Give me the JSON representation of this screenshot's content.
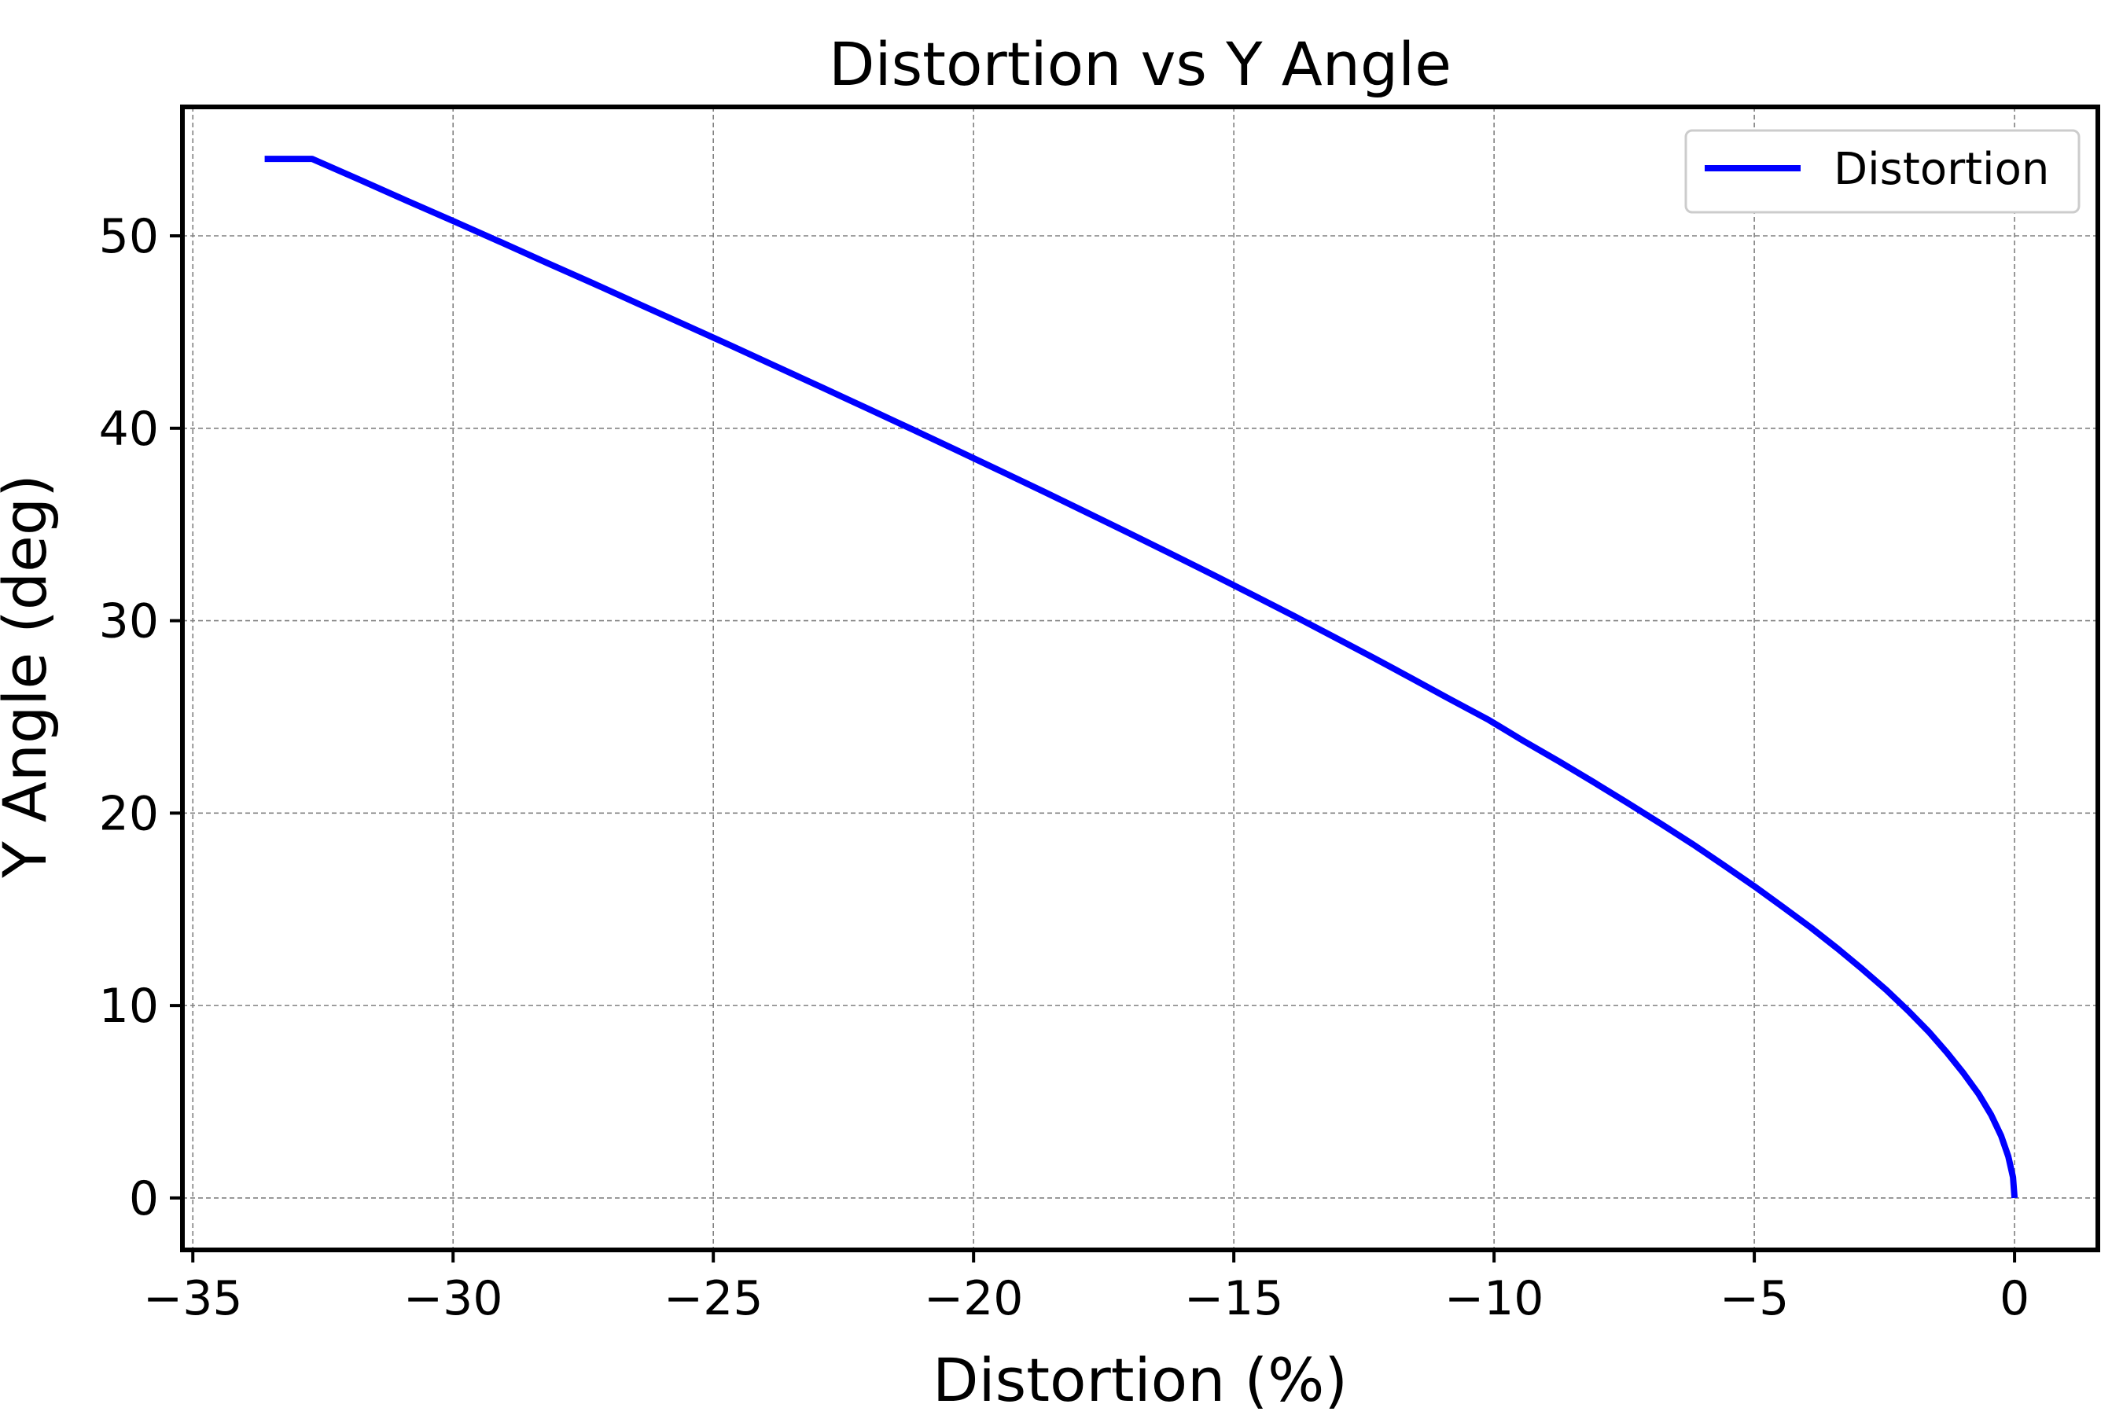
{
  "chart_data": {
    "type": "line",
    "title": "Distortion vs Y Angle",
    "xlabel": "Distortion (%)",
    "ylabel": "Y Angle (deg)",
    "xlim": [
      -35.2,
      1.6
    ],
    "ylim": [
      -2.7,
      56.7
    ],
    "xticks": [
      -35,
      -30,
      -25,
      -20,
      -15,
      -10,
      -5,
      0
    ],
    "xtick_labels": [
      "−35",
      "−30",
      "−25",
      "−20",
      "−15",
      "−10",
      "−5",
      "0"
    ],
    "yticks": [
      0,
      10,
      20,
      30,
      40,
      50
    ],
    "ytick_labels": [
      "0",
      "10",
      "20",
      "30",
      "40",
      "50"
    ],
    "grid": true,
    "legend_position": "top-right",
    "series": [
      {
        "name": "Distortion",
        "color": "#0000ff",
        "x": [
          0,
          -0.03,
          -0.12,
          -0.26,
          -0.45,
          -0.69,
          -0.98,
          -1.3,
          -1.65,
          -2.04,
          -2.46,
          -2.92,
          -3.4,
          -3.91,
          -4.45,
          -5.0,
          -5.58,
          -6.17,
          -6.79,
          -7.43,
          -8.08,
          -8.75,
          -9.44,
          -10.1,
          -10.85,
          -11.58,
          -12.32,
          -13.08,
          -13.84,
          -14.62,
          -15.41,
          -16.21,
          -17.02,
          -17.84,
          -18.66,
          -19.5,
          -20.34,
          -21.19,
          -22.05,
          -22.91,
          -23.78,
          -24.65,
          -25.53,
          -26.42,
          -27.3,
          -28.2,
          -29.09,
          -29.99,
          -30.9,
          -31.8,
          -32.71,
          -33.62
        ],
        "y": [
          0,
          1.08,
          2.16,
          3.24,
          4.32,
          5.4,
          6.48,
          7.56,
          8.64,
          9.72,
          10.8,
          11.88,
          12.96,
          14.04,
          15.12,
          16.2,
          17.28,
          18.36,
          19.44,
          20.52,
          21.6,
          22.68,
          23.76,
          24.84,
          25.92,
          27.0,
          28.08,
          29.16,
          30.24,
          31.32,
          32.4,
          33.48,
          34.56,
          35.64,
          36.72,
          37.8,
          38.88,
          39.96,
          41.04,
          42.12,
          43.2,
          44.28,
          45.36,
          46.44,
          47.52,
          48.6,
          49.68,
          50.76,
          51.84,
          52.92,
          54.0,
          54.0
        ]
      }
    ]
  }
}
